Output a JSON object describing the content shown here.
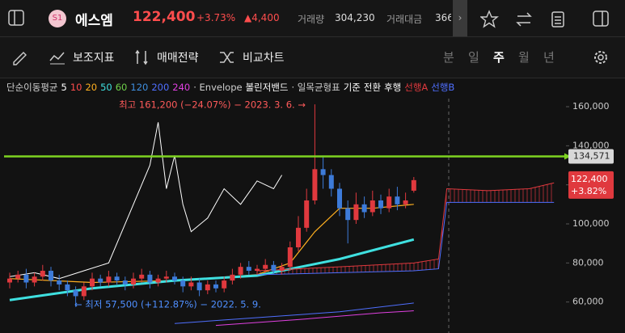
{
  "header": {
    "logo": "S1",
    "name": "에스엠",
    "price": "122,400",
    "change_pct": "+3.73%",
    "change": "▲4,400",
    "volume_label": "거래량",
    "volume": "304,230",
    "amount_label": "거래대금",
    "amount": "366"
  },
  "toolbar": {
    "items": [
      "보조지표",
      "매매전략",
      "비교차트"
    ],
    "periods": [
      "분",
      "일",
      "주",
      "월",
      "년"
    ],
    "active_period": 2
  },
  "chart_data": {
    "type": "candlestick",
    "legend": [
      {
        "text": "단순이동평균",
        "color": "#cfcfcf"
      },
      {
        "text": "5",
        "color": "#ffffff"
      },
      {
        "text": "10",
        "color": "#ff4d4d"
      },
      {
        "text": "20",
        "color": "#ffb020"
      },
      {
        "text": "50",
        "color": "#3fe0e0"
      },
      {
        "text": "60",
        "color": "#6fd04a"
      },
      {
        "text": "120",
        "color": "#3f8fe0"
      },
      {
        "text": "200",
        "color": "#4f6fff"
      },
      {
        "text": "240",
        "color": "#e040e0"
      },
      {
        "text": "· Envelope",
        "color": "#cfcfcf"
      },
      {
        "text": "볼린저밴드",
        "color": "#ffffff"
      },
      {
        "text": "· 일목균형표",
        "color": "#cfcfcf"
      },
      {
        "text": "기준",
        "color": "#ffffff"
      },
      {
        "text": "전환",
        "color": "#ffffff"
      },
      {
        "text": "후행",
        "color": "#ffffff"
      },
      {
        "text": "선행A",
        "color": "#e0393e"
      },
      {
        "text": "선행B",
        "color": "#4f6fff"
      }
    ],
    "open": [
      70000,
      72000,
      74000,
      70000,
      73000,
      76000,
      71000,
      69000,
      66000,
      63000,
      68000,
      72000,
      70000,
      73000,
      71000,
      69000,
      72000,
      74000,
      70000,
      72000,
      73000,
      71000,
      68000,
      70000,
      66000,
      69000,
      67000,
      71000,
      74000,
      78000,
      76000,
      77000,
      79000,
      76000,
      78000,
      88000,
      98000,
      112000,
      128000,
      125000,
      118000,
      108000,
      102000,
      110000,
      106000,
      112000,
      108000,
      114000,
      110000,
      117000
    ],
    "high": [
      75000,
      76000,
      77000,
      75000,
      79000,
      78000,
      74000,
      71000,
      68000,
      70000,
      75000,
      74000,
      76000,
      75000,
      73000,
      75000,
      77000,
      76000,
      74000,
      76000,
      75000,
      73000,
      73000,
      72000,
      71000,
      71000,
      73000,
      77000,
      80000,
      81000,
      79000,
      82000,
      81000,
      80000,
      91000,
      104000,
      118000,
      161200,
      135000,
      128000,
      121000,
      112000,
      116000,
      114000,
      117000,
      115000,
      118000,
      119000,
      116000,
      124000
    ],
    "low": [
      67000,
      70000,
      67000,
      68000,
      71000,
      68000,
      66000,
      63000,
      57500,
      61000,
      66000,
      68000,
      68000,
      69000,
      66000,
      67000,
      70000,
      67000,
      68000,
      70000,
      69000,
      65000,
      66000,
      63000,
      64000,
      65000,
      65000,
      69000,
      72000,
      74000,
      74000,
      75000,
      74000,
      74000,
      76000,
      86000,
      96000,
      110000,
      118000,
      114000,
      104000,
      90000,
      100000,
      103000,
      104000,
      105000,
      106000,
      107000,
      108000,
      116000
    ],
    "close": [
      72000,
      74000,
      70000,
      73000,
      76000,
      71000,
      69000,
      66000,
      63000,
      68000,
      72000,
      70000,
      73000,
      71000,
      69000,
      72000,
      74000,
      70000,
      72000,
      73000,
      71000,
      68000,
      70000,
      66000,
      69000,
      67000,
      71000,
      74000,
      78000,
      76000,
      77000,
      79000,
      76000,
      78000,
      88000,
      98000,
      112000,
      128000,
      125000,
      118000,
      108000,
      102000,
      110000,
      106000,
      112000,
      108000,
      114000,
      110000,
      112000,
      122400
    ],
    "up_color": "#e0393e",
    "down_color": "#3d7bd9",
    "lines": [
      {
        "name": "후행",
        "color": "#ffffff",
        "width": 1,
        "x": [
          0,
          3,
          6,
          9,
          12,
          15,
          17,
          18,
          19,
          20,
          21,
          22,
          24,
          26,
          28,
          30,
          32,
          33
        ],
        "values": [
          73000,
          75000,
          72000,
          76000,
          80000,
          110000,
          130000,
          152000,
          118000,
          135000,
          110000,
          96000,
          103000,
          118000,
          110000,
          122000,
          118000,
          125000
        ]
      },
      {
        "name": "20",
        "color": "#ffb020",
        "width": 1.2,
        "x": [
          0,
          10,
          20,
          30,
          34,
          37,
          40,
          44,
          49
        ],
        "values": [
          72000,
          70000,
          71000,
          74000,
          80000,
          96000,
          108000,
          108000,
          110000
        ]
      },
      {
        "name": "50",
        "color": "#3fe0e0",
        "width": 3,
        "x": [
          0,
          10,
          20,
          30,
          40,
          49
        ],
        "values": [
          61000,
          67000,
          71000,
          73500,
          82000,
          92000
        ]
      },
      {
        "name": "200",
        "color": "#4f6fff",
        "width": 1,
        "x": [
          20,
          30,
          40,
          49
        ],
        "values": [
          49000,
          52000,
          55000,
          59500
        ]
      },
      {
        "name": "240",
        "color": "#e040e0",
        "width": 1,
        "x": [
          25,
          35,
          45,
          49
        ],
        "values": [
          48000,
          51000,
          54500,
          55500
        ]
      },
      {
        "name": "선행A",
        "color": "#e0393e",
        "width": 1,
        "x": [
          30,
          40,
          49,
          52,
          53,
          58,
          63,
          66
        ],
        "values": [
          76000,
          78000,
          80000,
          82000,
          118000,
          117000,
          118000,
          121000
        ]
      },
      {
        "name": "선행B",
        "color": "#4f6fff",
        "width": 1,
        "x": [
          30,
          40,
          49,
          52,
          53,
          58,
          63,
          66
        ],
        "values": [
          74000,
          75000,
          76000,
          77000,
          111000,
          111000,
          111000,
          111000
        ]
      }
    ],
    "annotations": [
      {
        "text": "최고 161,200 (−24.07%) − 2023. 3. 6. →",
        "color": "#ff5a5a"
      },
      {
        "text": "← 최저 57,500 (+112.87%) − 2022. 5. 9.",
        "color": "#4f8fff"
      }
    ],
    "hline": {
      "value": 134571,
      "label": "134,571",
      "color": "#7ed321"
    },
    "last": {
      "value": 122400,
      "label": "122,400",
      "change": "+3.82%"
    },
    "ylim": [
      44140,
      174480
    ],
    "yticks": [
      {
        "value": 60000,
        "label": "60,000"
      },
      {
        "value": 80000,
        "label": "80,000"
      },
      {
        "value": 100000,
        "label": "100,000"
      },
      {
        "value": 120000,
        "label": "120,000"
      },
      {
        "value": 140000,
        "label": "140,000"
      },
      {
        "value": 160000,
        "label": "160,000"
      }
    ]
  }
}
